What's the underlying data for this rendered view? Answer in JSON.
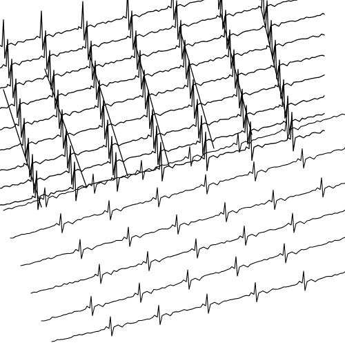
{
  "image": {
    "subject": "electrocardiogram-strips",
    "background_color": "#ffffff",
    "trace_color": "#000000"
  }
}
